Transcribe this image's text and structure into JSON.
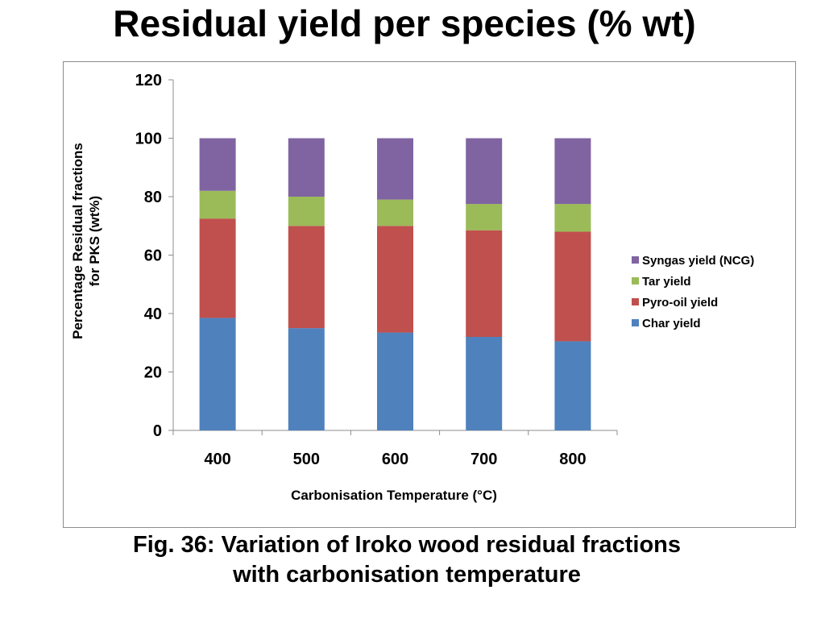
{
  "slide": {
    "title": "Residual yield per species (% wt)",
    "caption_line1": "Fig. 36: Variation of Iroko wood residual fractions",
    "caption_line2": "with carbonisation temperature"
  },
  "chart_data": {
    "type": "bar",
    "stacked": true,
    "title": "",
    "xlabel": "Carbonisation Temperature (°C)",
    "ylabel_line1": "Percentage Residual fractions",
    "ylabel_line2": "for PKS (wt%)",
    "ylim": [
      0,
      120
    ],
    "yticks": [
      0,
      20,
      40,
      60,
      80,
      100,
      120
    ],
    "grid": false,
    "legend_position": "right",
    "categories": [
      "400",
      "500",
      "600",
      "700",
      "800"
    ],
    "series": [
      {
        "name": "Char yield",
        "color": "#4f81bd",
        "values": [
          38.5,
          35.0,
          33.5,
          32.0,
          30.5
        ]
      },
      {
        "name": "Pyro-oil yield",
        "color": "#c0504d",
        "values": [
          34.0,
          35.0,
          36.5,
          36.5,
          37.5
        ]
      },
      {
        "name": "Tar yield",
        "color": "#9bbb59",
        "values": [
          9.5,
          10.0,
          9.0,
          9.0,
          9.5
        ]
      },
      {
        "name": "Syngas yield (NCG)",
        "color": "#8064a2",
        "values": [
          18.0,
          20.0,
          21.0,
          22.5,
          22.5
        ]
      }
    ]
  }
}
